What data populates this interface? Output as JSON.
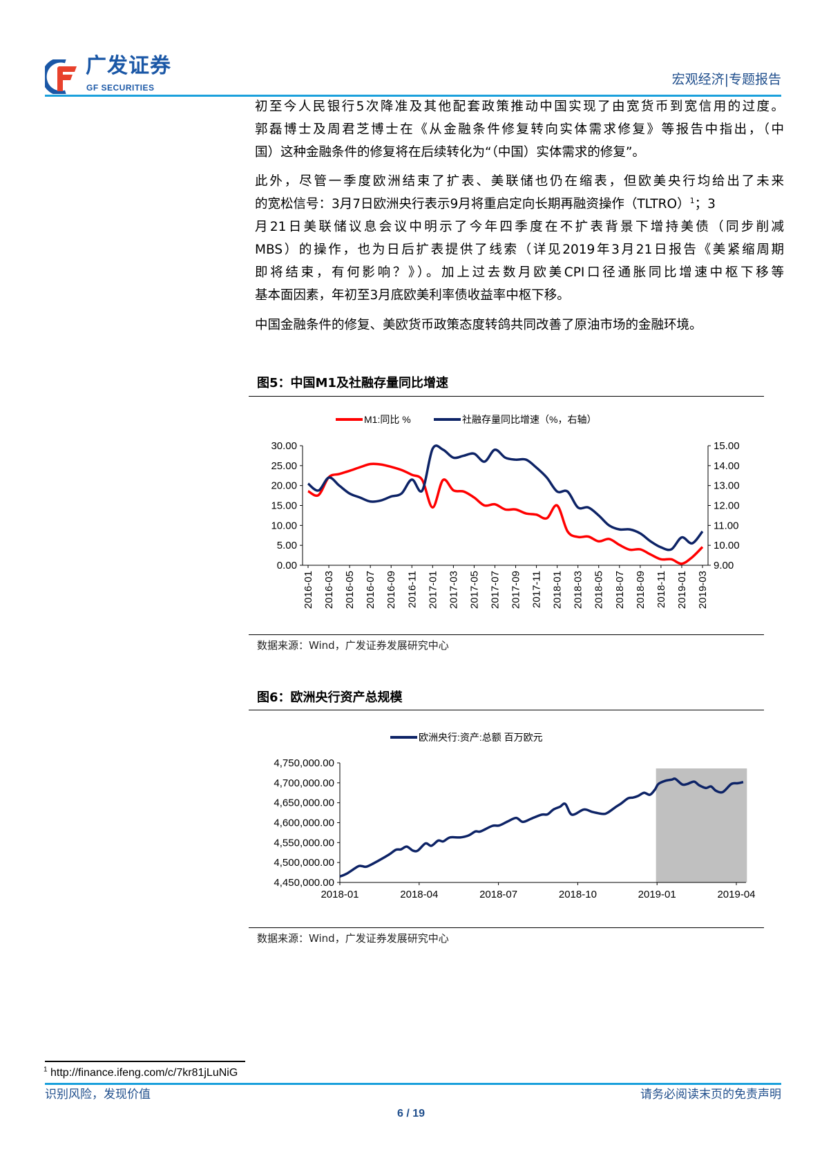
{
  "header": {
    "logo_cn": "广发证券",
    "logo_en": "GF SECURITIES",
    "section": "宏观经济|专题报告"
  },
  "body": {
    "lines": [
      "初至今人民银行5次降准及其他配套政策推动中国实现了由宽货币到宽信用的过度。",
      "郭磊博士及周君芝博士在《从金融条件修复转向实体需求修复》等报告中指出，（中",
      "国）这种金融条件的修复将在后续转化为“（中国）实体需求的修复”。",
      "此外，尽管一季度欧洲结束了扩表、美联储也仍在缩表，但欧美央行均给出了未来",
      "的宽松信号：3月7日欧洲央行表示9月将重启定向长期再融资操作（TLTRO）",
      "月21日美联储议息会议中明示了今年四季度在不扩表背景下增持美债（同步削减",
      "MBS）的操作，也为日后扩表提供了线索（详见2019年3月21日报告《美紧缩周期",
      "即将结束，有何影响？》）。加上过去数月欧美CPI口径通胀同比增速中枢下移等",
      "基本面因素，年初至3月底欧美利率债收益率中枢下移。",
      "中国金融条件的修复、美欧货币政策态度转鸽共同改善了原油市场的金融环境。"
    ],
    "footnote_ref": "1",
    "line5_tail": "；3"
  },
  "figure5": {
    "title": "图5：中国M1及社融存量同比增速",
    "source": "数据来源：Wind，广发证券发展研究中心"
  },
  "figure6": {
    "title": "图6：欧洲央行资产总规模",
    "source": "数据来源：Wind，广发证券发展研究中心"
  },
  "footnote": {
    "num": "1",
    "text": "http://finance.ifeng.com/c/7kr81jLuNiG"
  },
  "footer": {
    "left": "识别风险，发现价值",
    "right": "请务必阅读末页的免责声明",
    "page": "6 / 19"
  },
  "chart_data": [
    {
      "type": "line",
      "title": "图5：中国M1及社融存量同比增速",
      "x": [
        "2016-01",
        "2016-02",
        "2016-03",
        "2016-04",
        "2016-05",
        "2016-06",
        "2016-07",
        "2016-08",
        "2016-09",
        "2016-10",
        "2016-11",
        "2016-12",
        "2017-01",
        "2017-02",
        "2017-03",
        "2017-04",
        "2017-05",
        "2017-06",
        "2017-07",
        "2017-08",
        "2017-09",
        "2017-10",
        "2017-11",
        "2017-12",
        "2018-01",
        "2018-02",
        "2018-03",
        "2018-04",
        "2018-05",
        "2018-06",
        "2018-07",
        "2018-08",
        "2018-09",
        "2018-10",
        "2018-11",
        "2018-12",
        "2019-01",
        "2019-02",
        "2019-03"
      ],
      "x_tick_labels": [
        "2016-01",
        "2016-03",
        "2016-05",
        "2016-07",
        "2016-09",
        "2016-11",
        "2017-01",
        "2017-03",
        "2017-05",
        "2017-07",
        "2017-09",
        "2017-11",
        "2018-01",
        "2018-03",
        "2018-05",
        "2018-07",
        "2018-09",
        "2018-11",
        "2019-01",
        "2019-03"
      ],
      "series": [
        {
          "name": "M1:同比 %",
          "axis": "left",
          "color": "#ff0000",
          "values": [
            18.6,
            17.6,
            22.1,
            22.9,
            23.7,
            24.6,
            25.4,
            25.3,
            24.7,
            23.9,
            22.7,
            21.4,
            14.5,
            21.4,
            18.8,
            18.5,
            17.0,
            15.0,
            15.3,
            14.0,
            14.0,
            13.0,
            12.7,
            11.8,
            15.0,
            8.5,
            7.1,
            7.2,
            6.0,
            6.6,
            5.1,
            3.9,
            4.0,
            2.7,
            1.5,
            1.5,
            0.4,
            2.0,
            4.6
          ]
        },
        {
          "name": "社融存量同比增速（%，右轴）",
          "axis": "right",
          "color": "#0d2366",
          "values": [
            13.1,
            12.75,
            13.4,
            13.0,
            12.6,
            12.4,
            12.2,
            12.25,
            12.45,
            12.6,
            13.3,
            12.75,
            14.85,
            14.8,
            14.4,
            14.5,
            14.6,
            14.2,
            14.8,
            14.4,
            14.3,
            14.3,
            13.9,
            13.4,
            12.7,
            12.7,
            11.9,
            11.9,
            11.5,
            11.0,
            10.8,
            10.8,
            10.6,
            10.2,
            9.9,
            9.8,
            10.4,
            10.1,
            10.7
          ]
        }
      ],
      "y_left": {
        "min": 0,
        "max": 30,
        "ticks": [
          "0.00",
          "5.00",
          "10.00",
          "15.00",
          "20.00",
          "25.00",
          "30.00"
        ]
      },
      "y_right": {
        "min": 9,
        "max": 15,
        "ticks": [
          "9.00",
          "10.00",
          "11.00",
          "12.00",
          "13.00",
          "14.00",
          "15.00"
        ]
      },
      "legend": "top-center",
      "grid": false
    },
    {
      "type": "line",
      "title": "图6：欧洲央行资产总规模",
      "x_unit": "months since 2018-01",
      "x_tick_labels": [
        "2018-01",
        "2018-04",
        "2018-07",
        "2018-10",
        "2019-01",
        "2019-04"
      ],
      "x_range": [
        0,
        15.5
      ],
      "series": [
        {
          "name": "欧洲央行:资产:总额 百万欧元",
          "color": "#0d2366",
          "x": [
            0,
            0.26,
            0.68,
            0.83,
            1.03,
            1.47,
            1.86,
            2.12,
            2.31,
            2.53,
            2.76,
            2.95,
            3.24,
            3.46,
            3.72,
            3.91,
            4.17,
            4.55,
            4.87,
            5.13,
            5.32,
            5.77,
            6.03,
            6.35,
            6.67,
            6.92,
            7.24,
            7.63,
            7.86,
            8.08,
            8.33,
            8.53,
            8.78,
            9.23,
            9.55,
            9.94,
            10.13,
            10.45,
            10.64,
            10.9,
            11.09,
            11.28,
            11.51,
            11.73,
            11.92,
            12.05,
            12.31,
            12.56,
            12.69,
            12.95,
            13.14,
            13.4,
            13.59,
            13.85,
            14.04,
            14.23,
            14.49,
            14.81,
            15.06,
            15.26
          ],
          "values": [
            4465000,
            4472000,
            4490000,
            4491000,
            4490000,
            4505000,
            4520000,
            4532000,
            4533000,
            4540000,
            4530000,
            4530000,
            4548000,
            4542000,
            4555000,
            4553000,
            4563000,
            4563000,
            4568000,
            4578000,
            4578000,
            4592000,
            4593000,
            4603000,
            4612000,
            4602000,
            4610000,
            4620000,
            4621000,
            4633000,
            4640000,
            4647000,
            4620000,
            4633000,
            4627000,
            4622000,
            4625000,
            4640000,
            4648000,
            4661000,
            4663000,
            4667000,
            4675000,
            4670000,
            4683000,
            4697000,
            4705000,
            4708000,
            4710000,
            4696000,
            4697000,
            4703000,
            4694000,
            4687000,
            4691000,
            4680000,
            4677000,
            4697000,
            4699000,
            4702000
          ]
        }
      ],
      "shaded_region": {
        "x_from": 11.96,
        "x_to": 15.4,
        "color": "#c0c0c0"
      },
      "y": {
        "min": 4450000,
        "max": 4750000,
        "ticks": [
          "4,450,000.00",
          "4,500,000.00",
          "4,550,000.00",
          "4,600,000.00",
          "4,650,000.00",
          "4,700,000.00",
          "4,750,000.00"
        ]
      },
      "legend": "top-center",
      "grid": false
    }
  ]
}
